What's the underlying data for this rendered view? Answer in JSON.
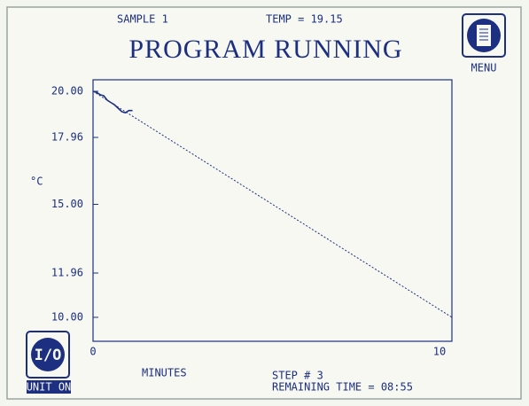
{
  "header": {
    "sample": "SAMPLE 1",
    "temp": "TEMP = 19.15",
    "title": "PROGRAM RUNNING",
    "menu": "MENU"
  },
  "footer": {
    "unit": "UNIT ON",
    "step": "STEP # 3",
    "remaining": "REMAINING TIME = 08:55"
  },
  "chart_data": {
    "type": "line",
    "x_label": "MINUTES",
    "y_label": "°C",
    "xlim": [
      0,
      10
    ],
    "ylim": [
      8.94,
      20.51
    ],
    "xticks": [
      0,
      10
    ],
    "yticks": [
      {
        "value": 20,
        "label": "20.00"
      },
      {
        "value": 17.96,
        "label": "17.96"
      },
      {
        "value": 15,
        "label": "15.00"
      },
      {
        "value": 11.96,
        "label": "11.96"
      },
      {
        "value": 10,
        "label": "10.00"
      }
    ],
    "series": [
      {
        "color": "#1d2f80",
        "dashed": true,
        "x": [
          0,
          10
        ],
        "values": [
          20,
          10
        ]
      },
      {
        "color": "#1d2f80",
        "dashed": false,
        "x": [
          0,
          0.1,
          0.2,
          0.3,
          0.4,
          0.5,
          0.6,
          0.7,
          0.8,
          0.9,
          1.0,
          1.1
        ],
        "values": [
          20,
          19.95,
          19.85,
          19.8,
          19.6,
          19.5,
          19.4,
          19.25,
          19.1,
          19.05,
          19.15,
          19.15
        ]
      }
    ]
  }
}
